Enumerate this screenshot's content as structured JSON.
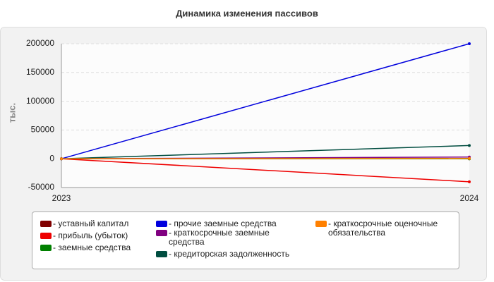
{
  "chart_data": {
    "type": "line",
    "title": "Динамика изменения пассивов",
    "y_label": "тыс.",
    "categories": [
      "2023",
      "2024"
    ],
    "series": [
      {
        "name": "- уставный капитал",
        "color": "#800000",
        "values": [
          0,
          0
        ]
      },
      {
        "name": "- прибыль (убыток)",
        "color": "#ee0000",
        "values": [
          0,
          -40000
        ]
      },
      {
        "name": "- заемные средства",
        "color": "#008000",
        "values": [
          0,
          0
        ]
      },
      {
        "name": "- прочие заемные средства",
        "color": "#0000dd",
        "values": [
          0,
          200000
        ]
      },
      {
        "name": "- краткосрочные заемные средства",
        "color": "#800080",
        "values": [
          0,
          3000
        ]
      },
      {
        "name": "- кредиторская задолженность",
        "color": "#004d40",
        "values": [
          0,
          23000
        ]
      },
      {
        "name": "- краткосрочные оценочные обязательства",
        "color": "#ff8000",
        "values": [
          0,
          500
        ]
      }
    ],
    "ylim": [
      -50000,
      200000
    ],
    "yticks": [
      -50000,
      0,
      50000,
      100000,
      150000,
      200000
    ],
    "grid": true
  }
}
